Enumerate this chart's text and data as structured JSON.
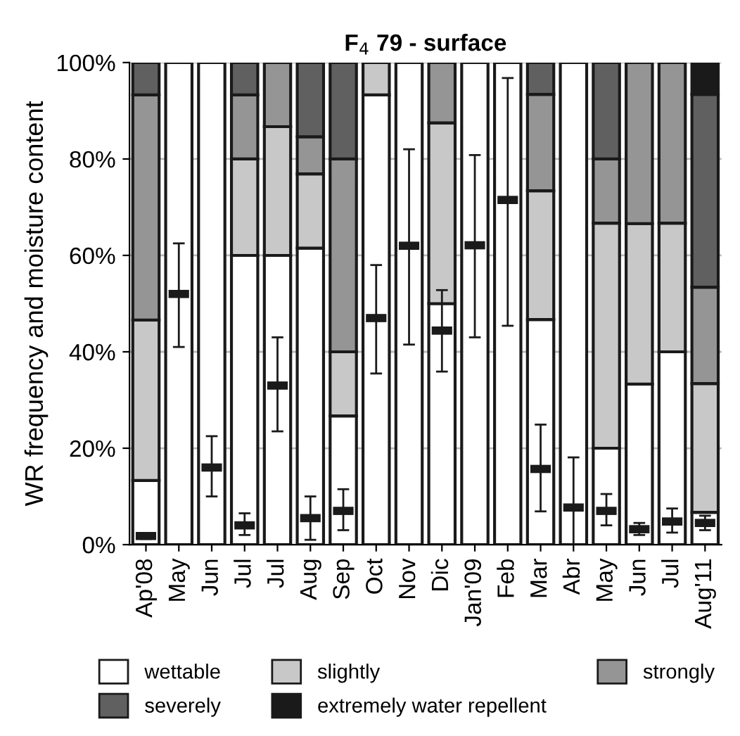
{
  "chart_data": {
    "type": "bar",
    "stacked": true,
    "title": "F$_{4}$ 79 - surface",
    "ylabel": "WR frequency and moisture content",
    "categories": [
      "Ap'08",
      "May",
      "Jun",
      "Jul",
      "Jul",
      "Aug",
      "Sep",
      "Oct",
      "Nov",
      "Dic",
      "Jan'09",
      "Feb",
      "Mar",
      "Abr",
      "May",
      "Jun",
      "Jul",
      "Aug'11"
    ],
    "ylim": [
      0,
      100
    ],
    "yticks": [
      {
        "value": 0,
        "label": "0%"
      },
      {
        "value": 20,
        "label": "20%"
      },
      {
        "value": 40,
        "label": "40%"
      },
      {
        "value": 60,
        "label": "60%"
      },
      {
        "value": 80,
        "label": "80%"
      },
      {
        "value": 100,
        "label": "100%"
      }
    ],
    "grid": "y",
    "legend": "bottom",
    "series": [
      {
        "name": "wettable",
        "color": "#ffffff",
        "values": [
          13.3,
          100,
          100,
          60,
          60,
          61.5,
          26.7,
          93.3,
          100,
          50,
          100,
          100,
          46.7,
          100,
          20,
          33.3,
          40,
          6.7
        ]
      },
      {
        "name": "slightly",
        "color": "#c8c8c8",
        "values": [
          33.3,
          0,
          0,
          20,
          26.7,
          15.4,
          13.3,
          6.7,
          0,
          37.5,
          0,
          0,
          26.7,
          0,
          46.7,
          33.3,
          26.7,
          26.7
        ]
      },
      {
        "name": "strongly",
        "color": "#959595",
        "values": [
          46.7,
          0,
          0,
          13.3,
          13.3,
          7.7,
          40,
          0,
          0,
          12.5,
          0,
          0,
          20,
          0,
          13.3,
          33.4,
          33.3,
          20
        ]
      },
      {
        "name": "severely",
        "color": "#606060",
        "values": [
          6.7,
          0,
          0,
          6.7,
          0,
          15.4,
          20,
          0,
          0,
          0,
          0,
          0,
          6.6,
          0,
          20,
          0,
          0,
          40
        ]
      },
      {
        "name": "extremely water repellent",
        "color": "#1a1a1a",
        "values": [
          0,
          0,
          0,
          0,
          0,
          0,
          0,
          0,
          0,
          0,
          0,
          0,
          0,
          0,
          0,
          0,
          0,
          6.6
        ]
      },
      {
        "type": "scatter",
        "color": "#1a1a1a",
        "values": [
          1.8,
          52,
          16,
          4,
          33,
          5.5,
          7,
          47,
          62,
          44.4,
          62.1,
          71.5,
          15.7,
          7.7,
          7,
          3.2,
          4.8,
          4.5
        ],
        "errors": [
          [
            1.2,
            2.4
          ],
          [
            41,
            62.5
          ],
          [
            10,
            22.5
          ],
          [
            2,
            6.5
          ],
          [
            23.5,
            43
          ],
          [
            1,
            10
          ],
          [
            3,
            11.5
          ],
          [
            35.5,
            58
          ],
          [
            41.5,
            82
          ],
          [
            35.9,
            52.8
          ],
          [
            43,
            80.8
          ],
          [
            45.4,
            96.8
          ],
          [
            6.9,
            24.9
          ],
          [
            0,
            18.1
          ],
          [
            4,
            10.5
          ],
          [
            2,
            4.5
          ],
          [
            2.5,
            7.5
          ],
          [
            3,
            6
          ]
        ]
      }
    ]
  }
}
